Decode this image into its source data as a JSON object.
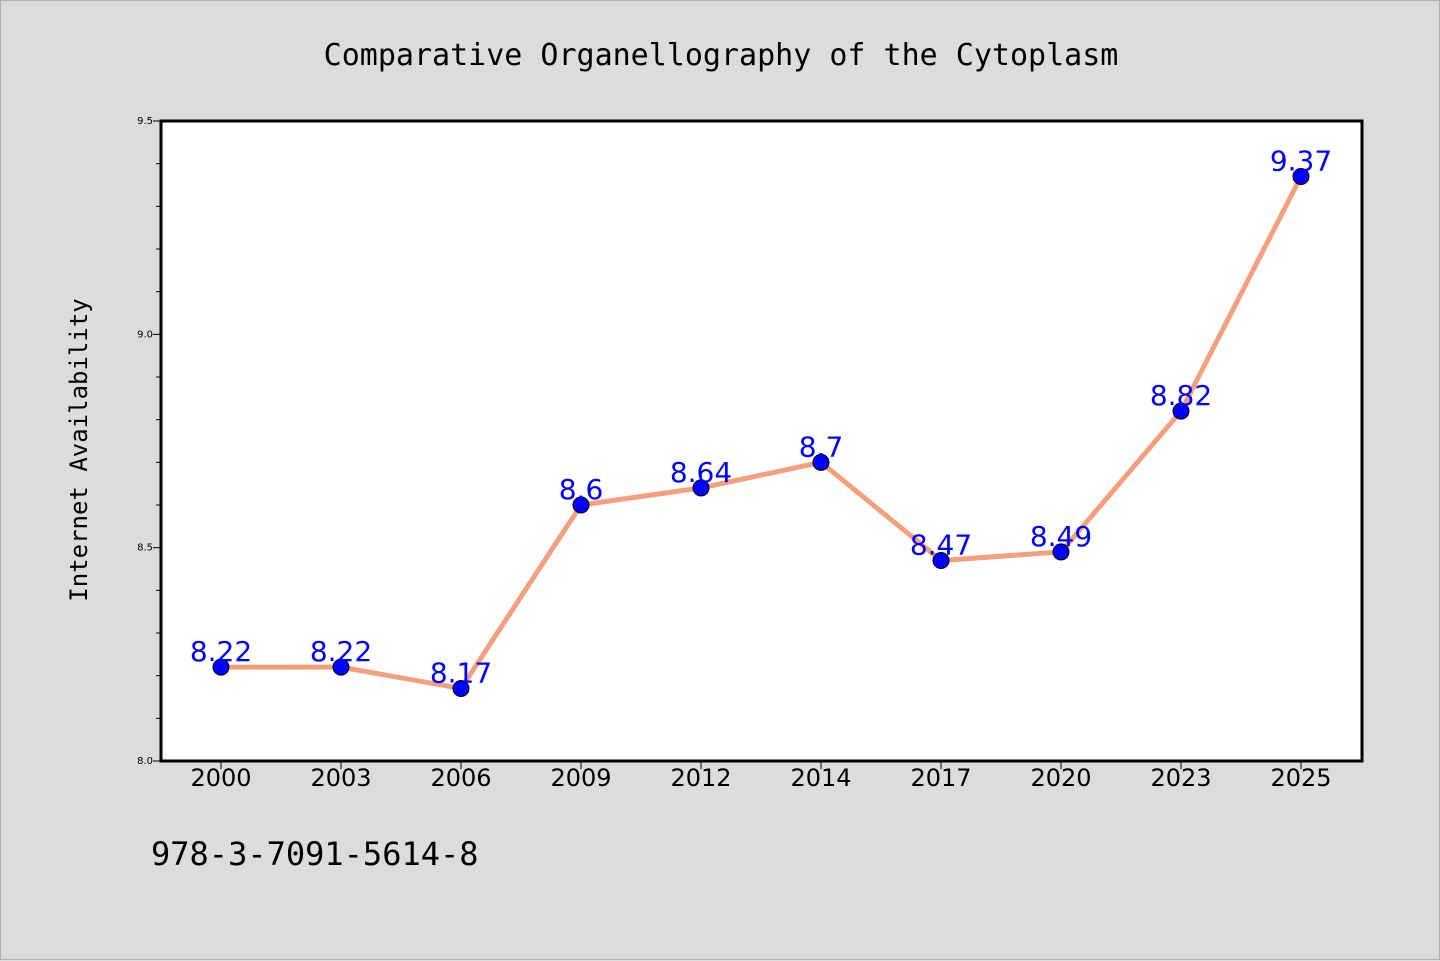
{
  "colors": {
    "background": "#dcdcdc",
    "plot_background": "#ffffff",
    "line": "#f4a07f",
    "marker": "#0000ff",
    "data_label": "#0000ff"
  },
  "chart_data": {
    "type": "line",
    "title": "Comparative Organellography of the Cytoplasm",
    "xlabel": "",
    "ylabel": "Internet Availability",
    "categories": [
      "2000",
      "2003",
      "2006",
      "2009",
      "2012",
      "2014",
      "2017",
      "2020",
      "2023",
      "2025"
    ],
    "series": [
      {
        "values": [
          8.22,
          8.22,
          8.17,
          8.6,
          8.64,
          8.7,
          8.47,
          8.49,
          8.82,
          9.37
        ],
        "labels": [
          "8.22",
          "8.22",
          "8.17",
          "8.6",
          "8.64",
          "8.7",
          "8.47",
          "8.49",
          "8.82",
          "9.37"
        ]
      }
    ],
    "ylim": [
      8.0,
      9.5
    ],
    "yticks": [
      8.0,
      8.5,
      9.0,
      9.5
    ],
    "ytick_labels": [
      "8.0",
      "8.5",
      "9.0",
      "9.5"
    ],
    "minor_ytick_step": 0.1,
    "grid": false,
    "legend": "none"
  },
  "footer": {
    "isbn": "978-3-7091-5614-8"
  }
}
